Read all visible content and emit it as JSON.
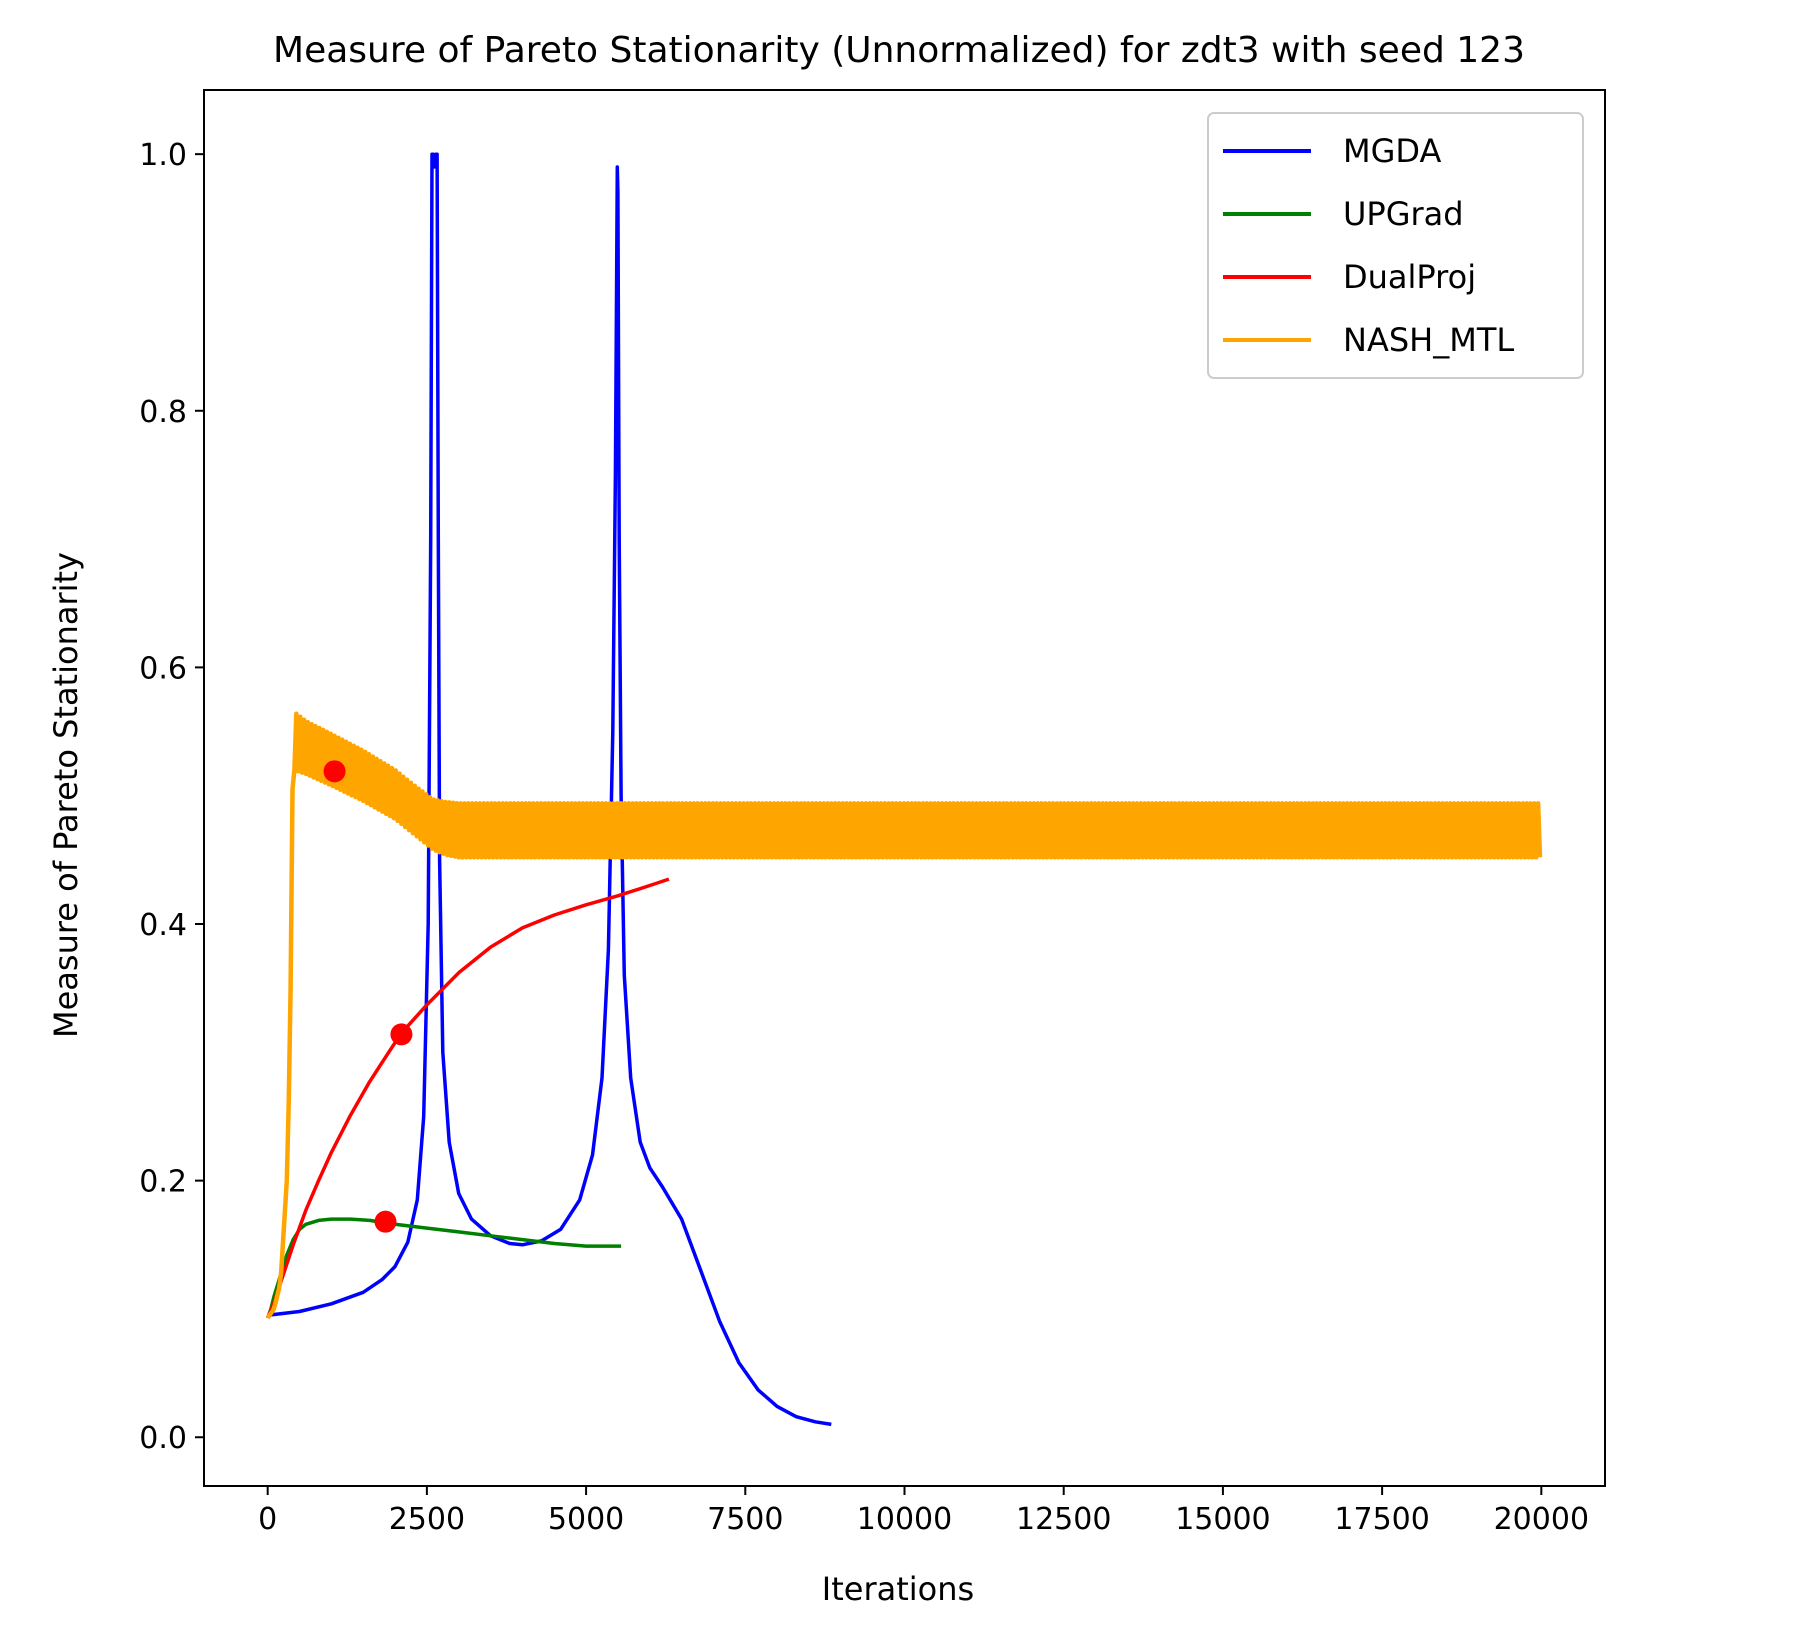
{
  "chart_data": {
    "type": "line",
    "title": "Measure of Pareto Stationarity (Unnormalized) for zdt3 with seed 123",
    "xlabel": "Iterations",
    "ylabel": "Measure of Pareto Stationarity",
    "xlim": [
      -1000,
      21000
    ],
    "ylim": [
      -0.038,
      1.05
    ],
    "xticks": [
      0,
      2500,
      5000,
      7500,
      10000,
      12500,
      15000,
      17500,
      20000
    ],
    "xtick_labels": [
      "0",
      "2500",
      "5000",
      "7500",
      "10000",
      "12500",
      "15000",
      "17500",
      "20000"
    ],
    "yticks": [
      0.0,
      0.2,
      0.4,
      0.6,
      0.8,
      1.0
    ],
    "ytick_labels": [
      "0.0",
      "0.2",
      "0.4",
      "0.6",
      "0.8",
      "1.0"
    ],
    "grid": false,
    "legend_position": "top-right",
    "series": [
      {
        "name": "MGDA",
        "color": "#0000ff",
        "x": [
          0,
          500,
          1000,
          1500,
          1800,
          2000,
          2200,
          2350,
          2450,
          2520,
          2560,
          2580,
          2600,
          2620,
          2640,
          2660,
          2680,
          2700,
          2750,
          2850,
          3000,
          3200,
          3500,
          3800,
          4000,
          4300,
          4600,
          4900,
          5100,
          5250,
          5350,
          5420,
          5460,
          5490,
          5500,
          5520,
          5550,
          5600,
          5700,
          5850,
          6000,
          6200,
          6500,
          6800,
          7100,
          7400,
          7700,
          8000,
          8300,
          8600,
          8850
        ],
        "y": [
          0.095,
          0.098,
          0.104,
          0.113,
          0.123,
          0.133,
          0.152,
          0.185,
          0.25,
          0.4,
          0.7,
          1.0,
          1.0,
          0.99,
          1.0,
          1.0,
          0.7,
          0.45,
          0.3,
          0.23,
          0.19,
          0.17,
          0.157,
          0.151,
          0.15,
          0.153,
          0.162,
          0.185,
          0.22,
          0.28,
          0.38,
          0.55,
          0.75,
          0.99,
          0.97,
          0.7,
          0.5,
          0.36,
          0.28,
          0.23,
          0.21,
          0.195,
          0.17,
          0.13,
          0.09,
          0.058,
          0.037,
          0.024,
          0.016,
          0.012,
          0.01
        ]
      },
      {
        "name": "UPGrad",
        "color": "#008000",
        "x": [
          0,
          50,
          100,
          200,
          300,
          400,
          500,
          600,
          800,
          1000,
          1300,
          1600,
          2000,
          2500,
          3000,
          3500,
          4000,
          4500,
          5000,
          5300,
          5550
        ],
        "y": [
          0.093,
          0.1,
          0.11,
          0.126,
          0.142,
          0.154,
          0.162,
          0.166,
          0.169,
          0.17,
          0.17,
          0.169,
          0.166,
          0.163,
          0.16,
          0.157,
          0.154,
          0.151,
          0.149,
          0.149,
          0.149
        ]
      },
      {
        "name": "DualProj",
        "color": "#ff0000",
        "x": [
          0,
          100,
          200,
          400,
          600,
          800,
          1000,
          1300,
          1600,
          1900,
          2100,
          2500,
          3000,
          3500,
          4000,
          4500,
          5000,
          5500,
          6000,
          6300
        ],
        "y": [
          0.093,
          0.105,
          0.12,
          0.15,
          0.177,
          0.2,
          0.222,
          0.251,
          0.277,
          0.3,
          0.315,
          0.337,
          0.362,
          0.382,
          0.397,
          0.407,
          0.415,
          0.422,
          0.43,
          0.435
        ]
      },
      {
        "name": "NASH_MTL",
        "color": "#ffa500",
        "x": [
          0,
          100,
          200,
          300,
          350,
          380,
          400,
          420,
          600,
          1000,
          1500,
          2000,
          2300,
          2600,
          2800,
          3000,
          4000,
          6000,
          8000,
          10000,
          12000,
          14000,
          16000,
          18000,
          20000
        ],
        "y_low": [
          0.093,
          0.1,
          0.12,
          0.2,
          0.3,
          0.45,
          0.52,
          0.52,
          0.517,
          0.508,
          0.496,
          0.482,
          0.47,
          0.458,
          0.454,
          0.452,
          0.452,
          0.452,
          0.452,
          0.452,
          0.452,
          0.452,
          0.452,
          0.452,
          0.452
        ],
        "y_high": [
          0.093,
          0.1,
          0.12,
          0.2,
          0.3,
          0.45,
          0.56,
          0.565,
          0.558,
          0.548,
          0.535,
          0.52,
          0.508,
          0.497,
          0.495,
          0.494,
          0.494,
          0.494,
          0.494,
          0.494,
          0.494,
          0.494,
          0.494,
          0.494,
          0.494
        ]
      }
    ],
    "markers": [
      {
        "x": 1050,
        "y": 0.519,
        "color": "#ff0000"
      },
      {
        "x": 2100,
        "y": 0.314,
        "color": "#ff0000"
      },
      {
        "x": 1850,
        "y": 0.168,
        "color": "#ff0000"
      }
    ]
  }
}
